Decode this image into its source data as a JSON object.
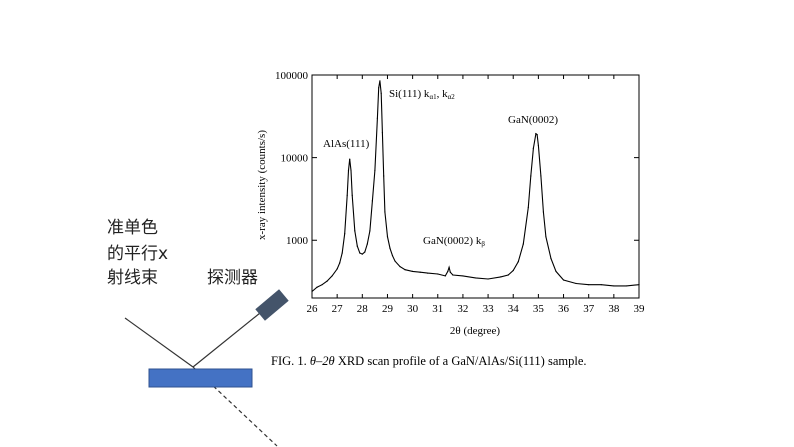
{
  "slide": {
    "beam_label_lines": [
      "准单色",
      "的平行x",
      "射线束"
    ],
    "detector_label": "探测器",
    "caption_prefix": "FIG. 1.",
    "caption_theta": "θ–2θ",
    "caption_rest": " XRD scan profile of a GaN/AlAs/Si(111) sample."
  },
  "colors": {
    "sample_fill": "#4472c4",
    "sample_stroke": "#2f528f",
    "detector_fill": "#44546a",
    "curve": "#000000"
  },
  "chart_data": {
    "type": "line",
    "xlabel": "2θ (degree)",
    "ylabel": "x-ray intensity (counts/s)",
    "xlim": [
      26,
      39
    ],
    "ylim": [
      200,
      100000
    ],
    "y_scale": "log",
    "x_ticks": [
      "26",
      "27",
      "28",
      "29",
      "30",
      "31",
      "32",
      "33",
      "34",
      "35",
      "36",
      "37",
      "38",
      "39"
    ],
    "y_ticks": [
      "1000",
      "10000",
      "100000"
    ],
    "series": [
      {
        "x": [
          26.0,
          26.2,
          26.4,
          26.6,
          26.8,
          27.0,
          27.1,
          27.2,
          27.3,
          27.4,
          27.45,
          27.5,
          27.55,
          27.6,
          27.7,
          27.8,
          27.9,
          28.0,
          28.1,
          28.2,
          28.3,
          28.4,
          28.5,
          28.6,
          28.65,
          28.7,
          28.75,
          28.8,
          28.85,
          28.9,
          29.0,
          29.1,
          29.2,
          29.3,
          29.5,
          29.7,
          30.0,
          30.3,
          30.6,
          31.0,
          31.3,
          31.4,
          31.45,
          31.5,
          31.6,
          32.0,
          32.5,
          33.0,
          33.5,
          33.8,
          34.0,
          34.2,
          34.4,
          34.6,
          34.7,
          34.8,
          34.9,
          34.95,
          35.0,
          35.1,
          35.2,
          35.3,
          35.5,
          35.7,
          36.0,
          36.5,
          37.0,
          37.5,
          38.0,
          38.5,
          39.0
        ],
        "y": [
          240,
          270,
          290,
          320,
          370,
          450,
          530,
          700,
          1200,
          3500,
          7000,
          9600,
          7000,
          3500,
          1300,
          850,
          700,
          680,
          720,
          900,
          1300,
          3000,
          7000,
          30000,
          70000,
          85000,
          60000,
          20000,
          6000,
          2200,
          1100,
          800,
          650,
          560,
          480,
          440,
          420,
          410,
          400,
          390,
          370,
          420,
          470,
          410,
          380,
          370,
          350,
          340,
          360,
          380,
          430,
          550,
          900,
          2500,
          6000,
          13000,
          19500,
          19000,
          14000,
          6000,
          2200,
          1100,
          600,
          420,
          330,
          300,
          290,
          290,
          280,
          280,
          290
        ]
      }
    ],
    "annotations": [
      "AlAs(111)",
      "Si(111) k",
      "α1",
      ", k",
      "α2",
      "GaN(0002)",
      "GaN(0002) k",
      "β"
    ]
  }
}
